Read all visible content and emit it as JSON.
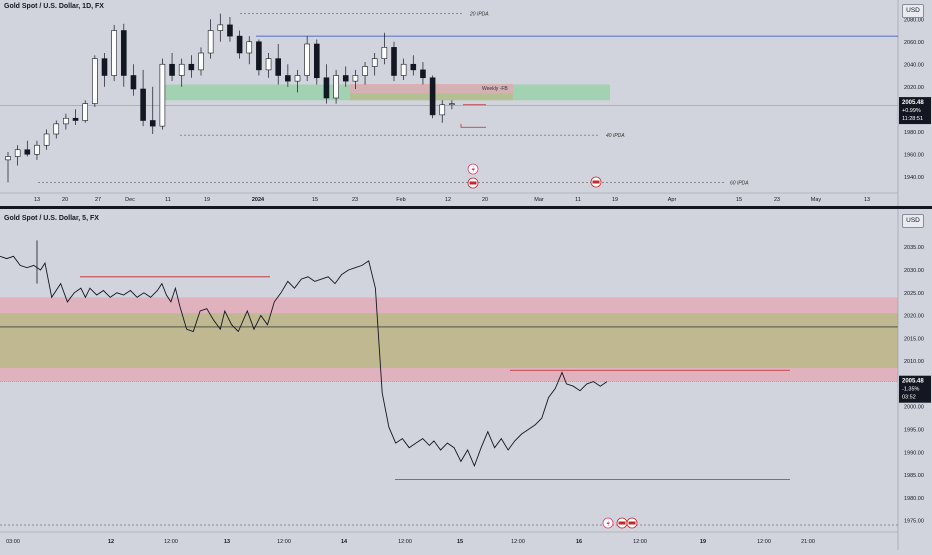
{
  "top_pane": {
    "legend": "Gold Spot / U.S. Dollar, 1D, FX",
    "currency": "USD",
    "price_label": {
      "price": "2005.48",
      "change": "+0.99%",
      "countdown": "11:28:51"
    },
    "annotations": {
      "ipda20": "20 IPDA",
      "ipda40": "40 IPDA",
      "ipda60": "60 IPDA",
      "weekly_fvg": "Weekly -FB"
    }
  },
  "bottom_pane": {
    "legend": "Gold Spot / U.S. Dollar, 5, FX",
    "currency": "USD",
    "price_label": {
      "price": "2005.48",
      "change": "-1.35%",
      "countdown": "03:52"
    }
  },
  "chart_data": [
    {
      "type": "candlestick",
      "title": "Gold Spot / U.S. Dollar, 1D, FX",
      "ylim": [
        1930,
        2090
      ],
      "y_ticks": [
        "2080.00",
        "2060.00",
        "2040.00",
        "2020.00",
        "2000.00",
        "1980.00",
        "1960.00",
        "1940.00"
      ],
      "x_ticks": [
        "13",
        "20",
        "27",
        "Dec",
        "11",
        "19",
        "2024",
        "15",
        "23",
        "Feb",
        "12",
        "20",
        "Mar",
        "11",
        "19",
        "Apr",
        "15",
        "23",
        "May",
        "13"
      ],
      "series": [
        {
          "ohlc": [
            [
              1955,
              1962,
              1935,
              1958
            ],
            [
              1958,
              1968,
              1950,
              1964
            ],
            [
              1964,
              1972,
              1958,
              1960
            ],
            [
              1960,
              1972,
              1955,
              1968
            ],
            [
              1968,
              1982,
              1964,
              1978
            ],
            [
              1978,
              1990,
              1974,
              1987
            ],
            [
              1987,
              1996,
              1982,
              1992
            ],
            [
              1992,
              2000,
              1986,
              1990
            ],
            [
              1990,
              2008,
              1988,
              2005
            ],
            [
              2005,
              2048,
              2002,
              2045
            ],
            [
              2045,
              2050,
              2020,
              2030
            ],
            [
              2030,
              2075,
              2025,
              2070
            ],
            [
              2070,
              2076,
              2020,
              2030
            ],
            [
              2030,
              2040,
              2012,
              2018
            ],
            [
              2018,
              2035,
              1985,
              1990
            ],
            [
              1990,
              2020,
              1978,
              1985
            ],
            [
              1985,
              2045,
              1982,
              2040
            ],
            [
              2040,
              2050,
              2025,
              2030
            ],
            [
              2030,
              2045,
              2020,
              2040
            ],
            [
              2040,
              2048,
              2028,
              2035
            ],
            [
              2035,
              2055,
              2030,
              2050
            ],
            [
              2050,
              2080,
              2045,
              2070
            ],
            [
              2070,
              2085,
              2060,
              2075
            ],
            [
              2075,
              2082,
              2060,
              2065
            ],
            [
              2065,
              2070,
              2045,
              2050
            ],
            [
              2050,
              2065,
              2040,
              2060
            ],
            [
              2060,
              2062,
              2030,
              2035
            ],
            [
              2035,
              2050,
              2028,
              2045
            ],
            [
              2045,
              2058,
              2022,
              2030
            ],
            [
              2030,
              2040,
              2020,
              2025
            ],
            [
              2025,
              2035,
              2015,
              2030
            ],
            [
              2030,
              2065,
              2025,
              2058
            ],
            [
              2058,
              2062,
              2022,
              2028
            ],
            [
              2028,
              2040,
              2005,
              2010
            ],
            [
              2010,
              2035,
              2005,
              2030
            ],
            [
              2030,
              2038,
              2020,
              2025
            ],
            [
              2025,
              2035,
              2018,
              2030
            ],
            [
              2030,
              2042,
              2022,
              2038
            ],
            [
              2038,
              2050,
              2030,
              2045
            ],
            [
              2045,
              2068,
              2040,
              2055
            ],
            [
              2055,
              2060,
              2025,
              2030
            ],
            [
              2030,
              2045,
              2026,
              2040
            ],
            [
              2040,
              2048,
              2030,
              2035
            ],
            [
              2035,
              2042,
              2022,
              2028
            ],
            [
              2028,
              2030,
              1992,
              1995
            ],
            [
              1995,
              2008,
              1988,
              2004
            ],
            [
              2004,
              2008,
              2000,
              2005
            ]
          ]
        }
      ],
      "levels": [
        {
          "label": "20 IPDA",
          "value": 2085
        },
        {
          "label": "",
          "value": 2065
        },
        {
          "label": "40 IPDA",
          "value": 1977
        },
        {
          "label": "60 IPDA",
          "value": 1935
        }
      ],
      "zones": [
        {
          "label": "Weekly -FB",
          "from": 2008,
          "to": 2022
        }
      ]
    },
    {
      "type": "line",
      "title": "Gold Spot / U.S. Dollar, 5, FX",
      "ylim": [
        1972.5,
        2042.5
      ],
      "y_ticks": [
        "2040.00",
        "2035.00",
        "2030.00",
        "2025.00",
        "2020.00",
        "2015.00",
        "2010.00",
        "2005.00",
        "2000.00",
        "1995.00",
        "1990.00",
        "1985.00",
        "1980.00",
        "1975.00"
      ],
      "x_ticks": [
        "03:00",
        "12",
        "12:00",
        "13",
        "12:00",
        "14",
        "12:00",
        "15",
        "12:00",
        "16",
        "12:00",
        "19",
        "12:00",
        "21:00"
      ],
      "series": [
        {
          "x": [
            0,
            3,
            6,
            9,
            12,
            15,
            18,
            20,
            23,
            27,
            30,
            33,
            36,
            38,
            40,
            43,
            46,
            49,
            52,
            55,
            58,
            61,
            64,
            67,
            70,
            72,
            74,
            76,
            78,
            80,
            83,
            86,
            89,
            92,
            95,
            98,
            100,
            103,
            106,
            110,
            113,
            116,
            119,
            122,
            125,
            128,
            131,
            134,
            137,
            140,
            143,
            146,
            149,
            152,
            155,
            158,
            161,
            164,
            167,
            170,
            173,
            176,
            179,
            182,
            185,
            188,
            191,
            193,
            196,
            199,
            202,
            205,
            208,
            211,
            214,
            217,
            220,
            223,
            226,
            229,
            232,
            235,
            238,
            241,
            244,
            247,
            250,
            252,
            255,
            258,
            261,
            264,
            267,
            270
          ],
          "y": [
            2033,
            2032.5,
            2033,
            2031,
            2030.5,
            2031,
            2030,
            2031.5,
            2024,
            2027,
            2023,
            2025,
            2026,
            2024,
            2026,
            2024.5,
            2025.5,
            2024,
            2025,
            2024.5,
            2025.5,
            2024,
            2025,
            2024,
            2025.5,
            2027,
            2024.5,
            2023,
            2026,
            2022,
            2017,
            2016.5,
            2021,
            2021.5,
            2019,
            2017,
            2021,
            2018,
            2016.5,
            2021,
            2017,
            2020,
            2018,
            2023,
            2025,
            2027.5,
            2026,
            2028,
            2028.5,
            2027.5,
            2028,
            2028.5,
            2027,
            2029,
            2030,
            2030.5,
            2031,
            2032,
            2026,
            2003,
            1995.5,
            1992,
            1993,
            1991,
            1992,
            1993,
            1991.5,
            1992.5,
            1990.5,
            1992,
            1991,
            1988,
            1990.5,
            1987,
            1991,
            1994.5,
            1991,
            1993,
            1990.5,
            1992.5,
            1994,
            1995,
            1996,
            1997.5,
            2002,
            2004,
            2007.5,
            2005,
            2004.5,
            2003.5,
            2005,
            2005.5,
            2004.5,
            2005.5
          ]
        }
      ],
      "levels": [
        {
          "value": 2028.5
        },
        {
          "value": 2008
        },
        {
          "value": 1984
        },
        {
          "value": 2017.5
        }
      ],
      "zones": [
        {
          "from": 2005.5,
          "to": 2024
        },
        {
          "from": 2008.5,
          "to": 2020.5
        }
      ]
    }
  ]
}
